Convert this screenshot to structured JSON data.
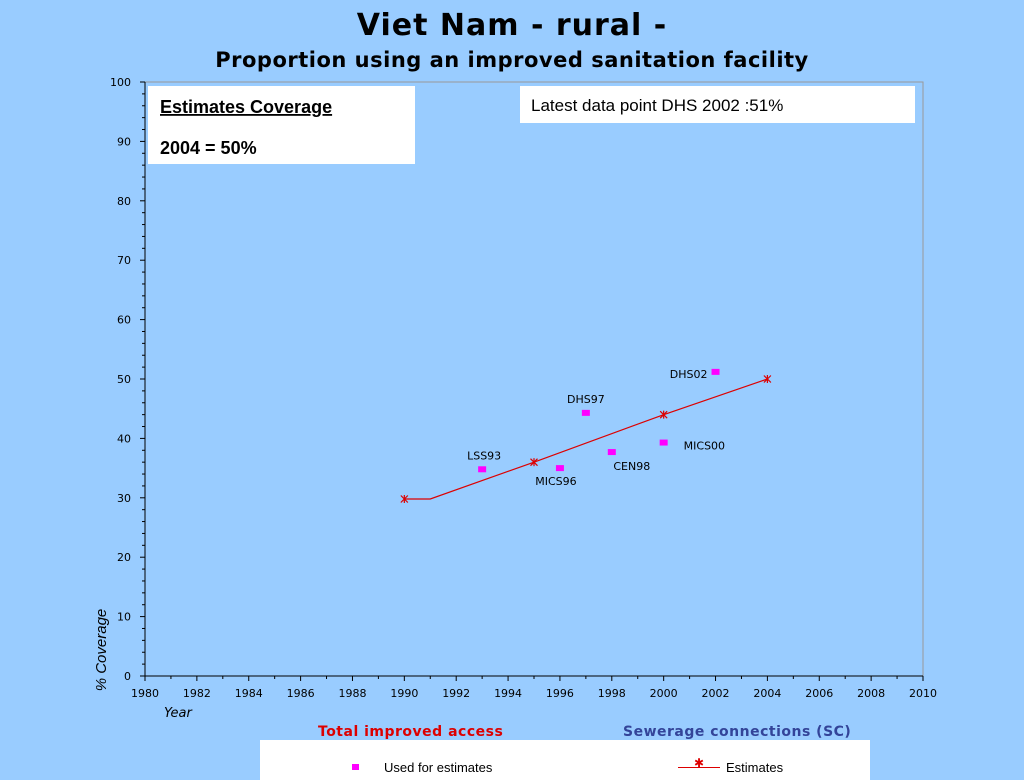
{
  "title": "Viet Nam  - rural -",
  "subtitle": "Proportion using an improved sanitation facility",
  "chart_data": {
    "type": "scatter",
    "title": "Viet Nam  - rural -",
    "subtitle": "Proportion using an improved sanitation facility",
    "xlabel": "Year",
    "ylabel": "% Coverage",
    "xlim": [
      1980,
      2010
    ],
    "ylim": [
      0,
      100
    ],
    "x_ticks": [
      "1980",
      "1982",
      "1984",
      "1986",
      "1988",
      "1990",
      "1992",
      "1994",
      "1996",
      "1998",
      "2000",
      "2002",
      "2004",
      "2006",
      "2008",
      "2010"
    ],
    "y_ticks": [
      "0",
      "10",
      "20",
      "30",
      "40",
      "50",
      "60",
      "70",
      "80",
      "90",
      "100"
    ],
    "grid": false,
    "series": [
      {
        "name": "Used for estimates",
        "type": "scatter",
        "color": "#ff00ff",
        "points": [
          {
            "label": "LSS93",
            "x": 1993,
            "y": 34.8
          },
          {
            "label": "MICS96",
            "x": 1996,
            "y": 35.0
          },
          {
            "label": "DHS97",
            "x": 1997,
            "y": 44.3
          },
          {
            "label": "CEN98",
            "x": 1998,
            "y": 37.7
          },
          {
            "label": "MICS00",
            "x": 2000,
            "y": 39.3
          },
          {
            "label": "DHS02",
            "x": 2002,
            "y": 51.2
          }
        ]
      },
      {
        "name": "Estimates",
        "type": "line",
        "color": "#dd0000",
        "line_x": [
          1990,
          1991,
          1995,
          2000,
          2004
        ],
        "line_y": [
          29.8,
          29.8,
          36.0,
          44.0,
          50.0
        ],
        "markers": [
          {
            "x": 1990,
            "y": 29.8
          },
          {
            "x": 1995,
            "y": 36.0
          },
          {
            "x": 2000,
            "y": 44.0
          },
          {
            "x": 2004,
            "y": 50.0
          }
        ]
      }
    ],
    "annotations": [
      {
        "line1": "Estimates Coverage",
        "line2": "2004 = 50%"
      },
      {
        "line1": "Latest data point DHS 2002 :51%"
      }
    ]
  },
  "legend": {
    "total_label": "Total improved access",
    "sewerage_label": "Sewerage connections (SC)",
    "used_label": "Used for estimates",
    "estimates_label": "Estimates"
  }
}
